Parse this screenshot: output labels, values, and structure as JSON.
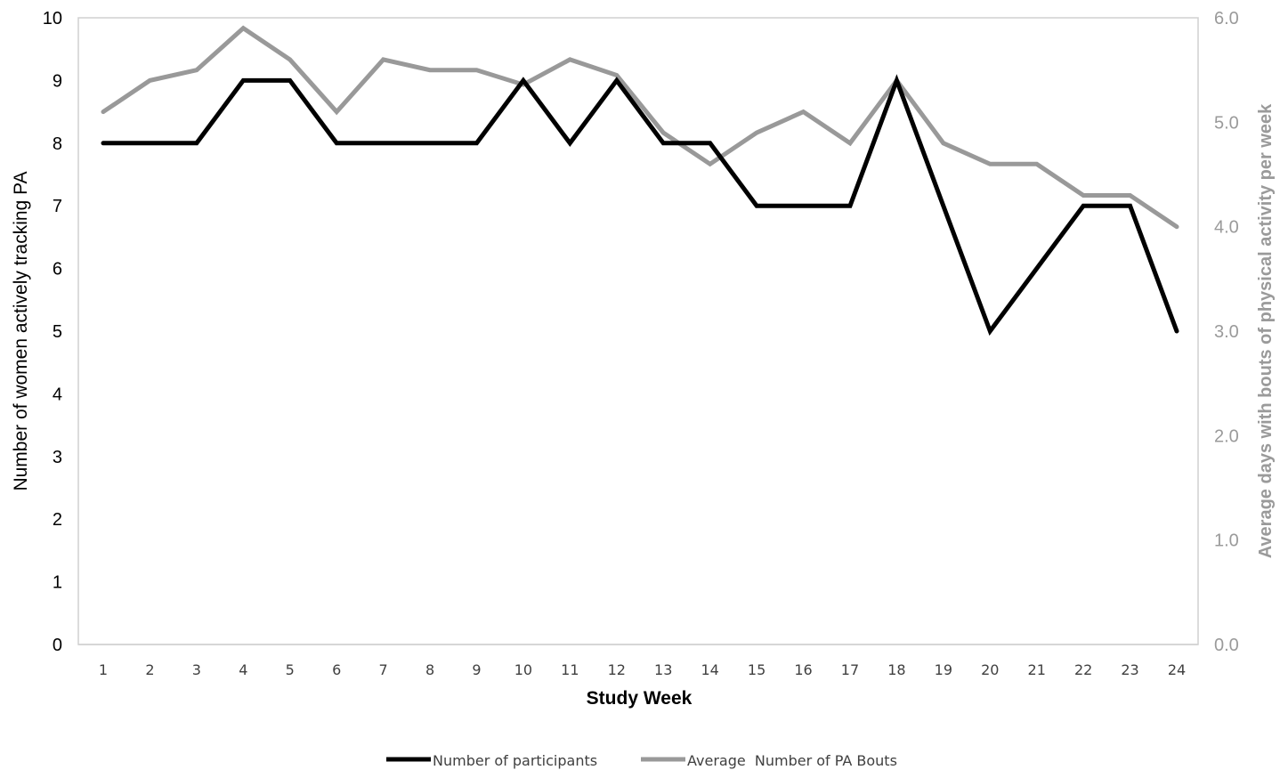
{
  "chart_data": {
    "type": "line",
    "xlabel": "Study Week",
    "ylabel_left": "Number of women actively tracking PA",
    "ylabel_right": "Average days with bouts of physical activity per week",
    "categories": [
      "1",
      "2",
      "3",
      "4",
      "5",
      "6",
      "7",
      "8",
      "9",
      "10",
      "11",
      "12",
      "13",
      "14",
      "15",
      "16",
      "17",
      "18",
      "19",
      "20",
      "21",
      "22",
      "23",
      "24"
    ],
    "y_left": {
      "lim": [
        0,
        10
      ],
      "ticks": [
        "0",
        "1",
        "2",
        "3",
        "4",
        "5",
        "6",
        "7",
        "8",
        "9",
        "10"
      ]
    },
    "y_right": {
      "lim": [
        0,
        6
      ],
      "ticks": [
        "0.0",
        "1.0",
        "2.0",
        "3.0",
        "4.0",
        "5.0",
        "6.0"
      ]
    },
    "series": [
      {
        "name": "Number of participants",
        "axis": "left",
        "color": "#000000",
        "values": [
          8,
          8,
          8,
          9,
          9,
          8,
          8,
          8,
          8,
          9,
          8,
          9,
          8,
          8,
          7,
          7,
          7,
          9,
          7,
          5,
          6,
          7,
          7,
          5
        ]
      },
      {
        "name": "Average  Number of PA Bouts",
        "axis": "right",
        "color": "#999999",
        "values": [
          5.1,
          5.4,
          5.5,
          5.9,
          5.6,
          5.1,
          5.6,
          5.5,
          5.5,
          5.36,
          5.6,
          5.45,
          4.9,
          4.6,
          4.9,
          5.1,
          4.8,
          5.4,
          4.8,
          4.6,
          4.6,
          4.3,
          4.3,
          4.0
        ]
      }
    ],
    "legend": {
      "position": "bottom",
      "entries": [
        "Number of participants",
        "Average  Number of PA Bouts"
      ]
    },
    "grid": false
  }
}
